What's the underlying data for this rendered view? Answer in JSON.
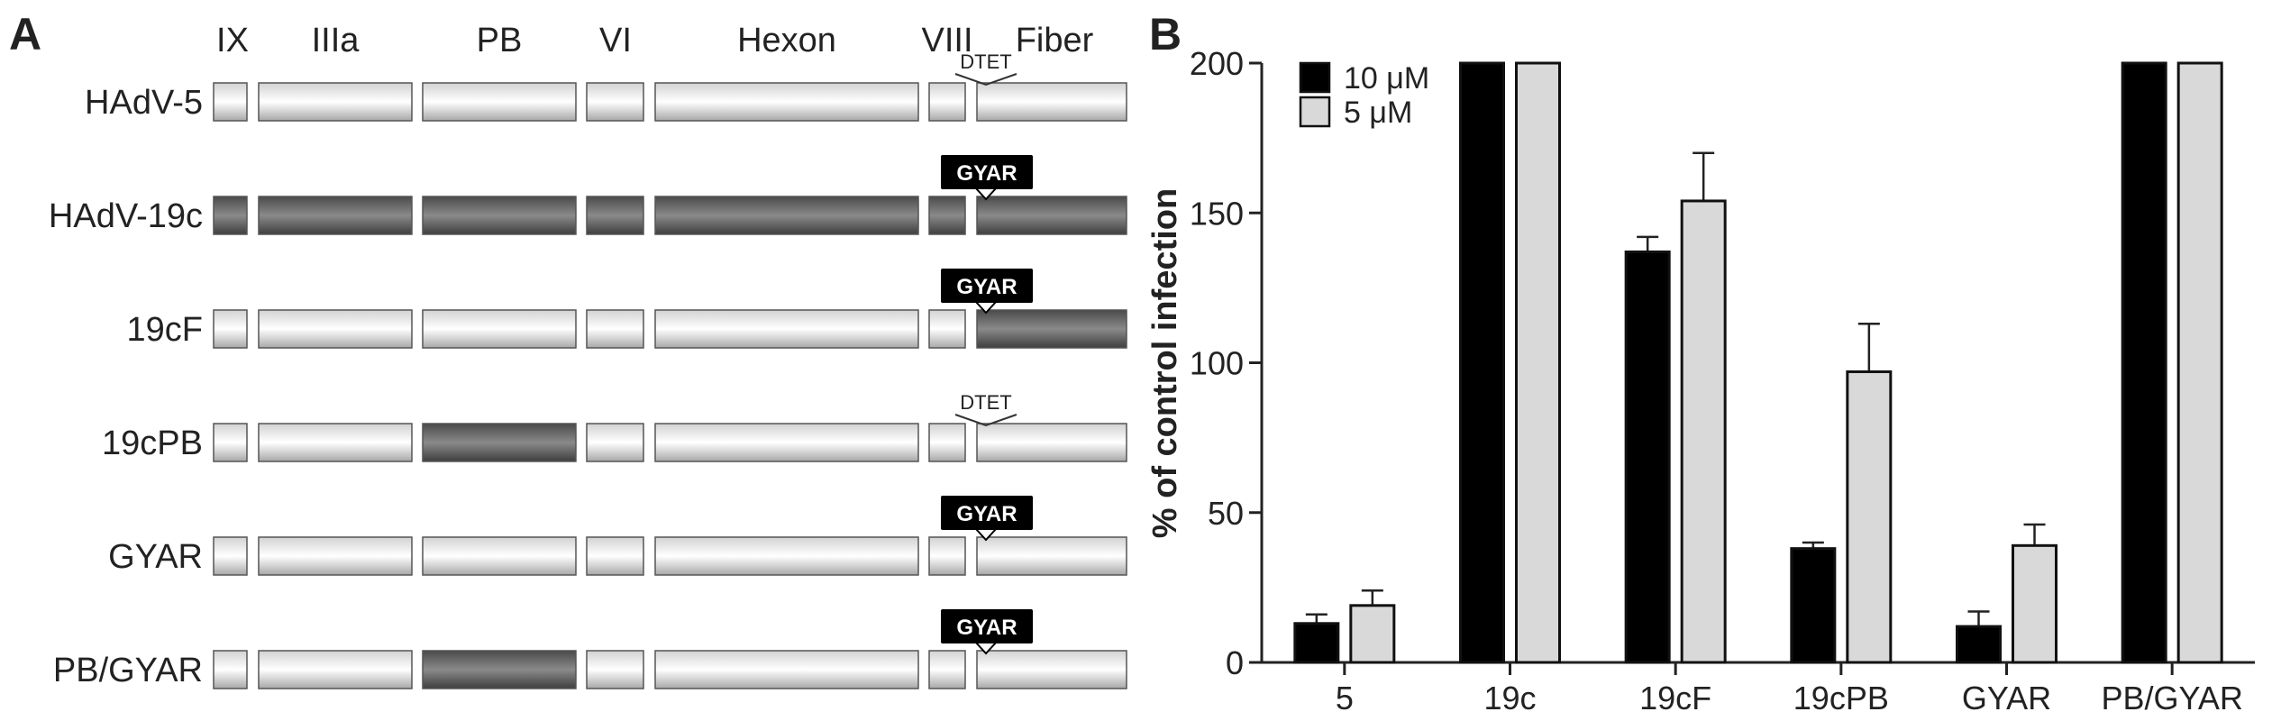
{
  "panel_a": {
    "panel_label": "A",
    "proteins": [
      "IX",
      "IIIa",
      "PB",
      "VI",
      "Hexon",
      "VIII",
      "Fiber"
    ],
    "constructs": [
      {
        "name": "HAdV-5",
        "segments": [
          "light",
          "light",
          "light",
          "light",
          "light",
          "light",
          "light"
        ],
        "motif": "DTET",
        "motif_style": "outline"
      },
      {
        "name": "HAdV-19c",
        "segments": [
          "dark",
          "dark",
          "dark",
          "dark",
          "dark",
          "dark",
          "dark"
        ],
        "motif": "GYAR",
        "motif_style": "filled"
      },
      {
        "name": "19cF",
        "segments": [
          "light",
          "light",
          "light",
          "light",
          "light",
          "light",
          "dark"
        ],
        "motif": "GYAR",
        "motif_style": "filled"
      },
      {
        "name": "19cPB",
        "segments": [
          "light",
          "light",
          "dark",
          "light",
          "light",
          "light",
          "light"
        ],
        "motif": "DTET",
        "motif_style": "outline"
      },
      {
        "name": "GYAR",
        "segments": [
          "light",
          "light",
          "light",
          "light",
          "light",
          "light",
          "light"
        ],
        "motif": "GYAR",
        "motif_style": "filled"
      },
      {
        "name": "PB/GYAR",
        "segments": [
          "light",
          "light",
          "dark",
          "light",
          "light",
          "light",
          "light"
        ],
        "motif": "GYAR",
        "motif_style": "filled"
      }
    ],
    "colors": {
      "light": "#ececec",
      "dark": "#6b6b6b",
      "tag": "#000000"
    }
  },
  "chart_data": {
    "type": "bar",
    "panel_label": "B",
    "categories": [
      "5",
      "19c",
      "19cF",
      "19cPB",
      "GYAR",
      "PB/GYAR"
    ],
    "series": [
      {
        "name": "10 μM",
        "color": "#000000",
        "values": [
          13,
          200,
          137,
          38,
          12,
          200
        ],
        "errors": [
          3,
          0,
          5,
          2,
          5,
          0
        ]
      },
      {
        "name": "5 μM",
        "color": "#d9d9d9",
        "values": [
          19,
          200,
          154,
          97,
          39,
          200
        ],
        "errors": [
          5,
          0,
          16,
          16,
          7,
          0
        ]
      }
    ],
    "ylabel": "% of control infection",
    "xlabel": "",
    "ylim": [
      0,
      200
    ],
    "yticks": [
      0,
      50,
      100,
      150,
      200
    ],
    "legend_position": "top-left",
    "grid": false
  }
}
